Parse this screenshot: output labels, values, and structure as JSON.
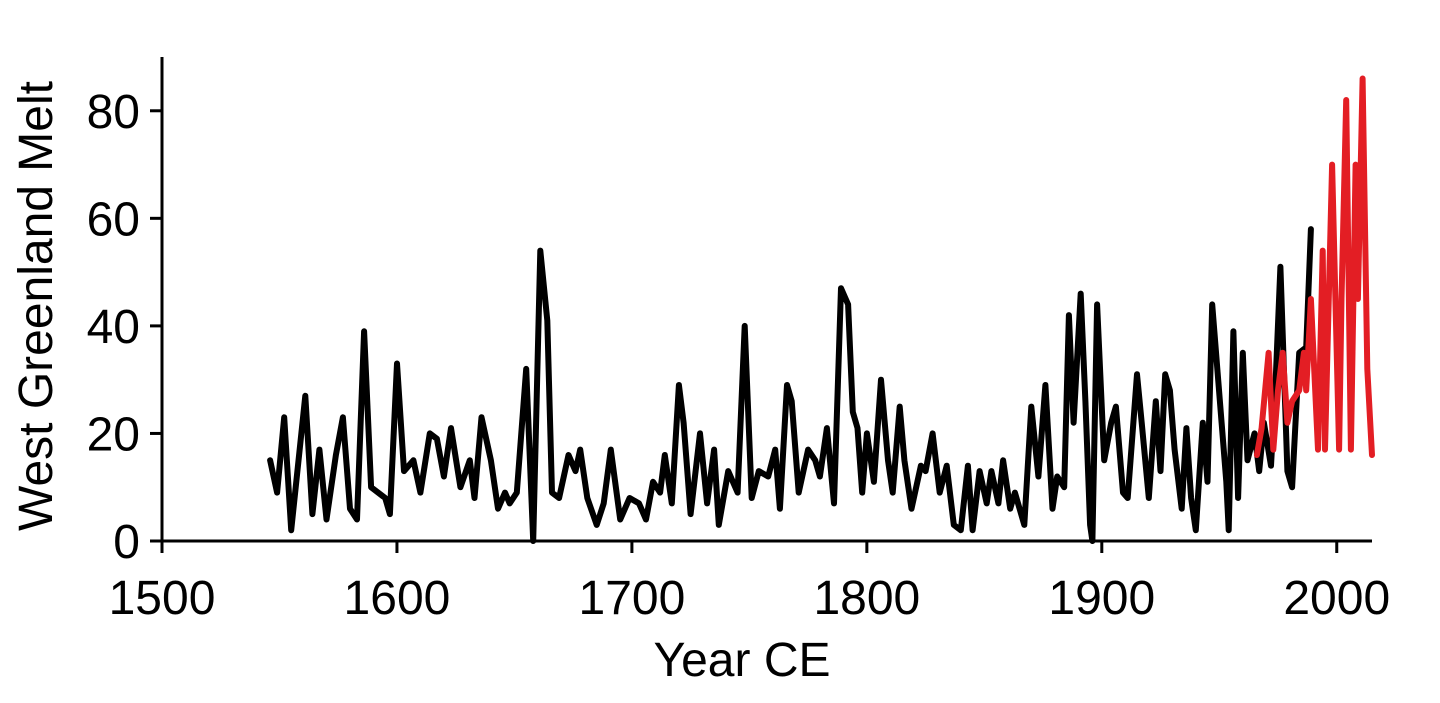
{
  "chart_data": {
    "type": "line",
    "xlabel": "Year CE",
    "ylabel": "West Greenland Melt",
    "xlim": [
      1500,
      2015
    ],
    "ylim": [
      0,
      90
    ],
    "xticks": [
      1500,
      1600,
      1700,
      1800,
      1900,
      2000
    ],
    "yticks": [
      0,
      20,
      40,
      60,
      80
    ],
    "series": [
      {
        "color": "#000000",
        "x": [
          1546,
          1549,
          1552,
          1555,
          1561,
          1564,
          1567,
          1570,
          1574,
          1577,
          1580,
          1583,
          1586,
          1589,
          1595,
          1597,
          1600,
          1603,
          1607,
          1610,
          1614,
          1617,
          1620,
          1623,
          1627,
          1631,
          1633,
          1636,
          1640,
          1643,
          1646,
          1648,
          1651,
          1655,
          1658,
          1661,
          1664,
          1666,
          1669,
          1673,
          1676,
          1678,
          1681,
          1685,
          1688,
          1691,
          1695,
          1699,
          1703,
          1706,
          1709,
          1712,
          1714,
          1717,
          1720,
          1722,
          1725,
          1729,
          1732,
          1735,
          1737,
          1741,
          1745,
          1748,
          1751,
          1754,
          1758,
          1761,
          1763,
          1766,
          1768,
          1771,
          1775,
          1778,
          1780,
          1783,
          1786,
          1789,
          1792,
          1794,
          1796,
          1798,
          1800,
          1803,
          1806,
          1809,
          1811,
          1814,
          1816,
          1819,
          1823,
          1825,
          1828,
          1831,
          1834,
          1837,
          1840,
          1843,
          1845,
          1848,
          1851,
          1853,
          1856,
          1858,
          1861,
          1863,
          1867,
          1870,
          1873,
          1876,
          1879,
          1881,
          1884,
          1886,
          1888,
          1891,
          1893,
          1895,
          1896,
          1898,
          1901,
          1904,
          1906,
          1909,
          1911,
          1915,
          1917,
          1920,
          1923,
          1925,
          1927,
          1929,
          1931,
          1934,
          1936,
          1938,
          1940,
          1943,
          1945,
          1947,
          1951,
          1953,
          1954,
          1956,
          1958,
          1960,
          1962,
          1965,
          1967,
          1969,
          1972,
          1974,
          1976,
          1979,
          1981,
          1984,
          1987,
          1989
        ],
        "values": [
          15,
          9,
          23,
          2,
          27,
          5,
          17,
          4,
          16,
          23,
          6,
          4,
          39,
          10,
          8,
          5,
          33,
          13,
          15,
          9,
          20,
          19,
          12,
          21,
          10,
          15,
          8,
          23,
          15,
          6,
          9,
          7,
          9,
          32,
          0,
          54,
          41,
          9,
          8,
          16,
          13,
          17,
          8,
          3,
          7,
          17,
          4,
          8,
          7,
          4,
          11,
          9,
          16,
          7,
          29,
          22,
          5,
          20,
          7,
          17,
          3,
          13,
          9,
          40,
          8,
          13,
          12,
          17,
          6,
          29,
          26,
          9,
          17,
          15,
          12,
          21,
          7,
          47,
          44,
          24,
          21,
          9,
          20,
          11,
          30,
          15,
          9,
          25,
          15,
          6,
          14,
          13,
          20,
          9,
          14,
          3,
          2,
          14,
          2,
          13,
          7,
          13,
          7,
          15,
          6,
          9,
          3,
          25,
          12,
          29,
          6,
          12,
          10,
          42,
          22,
          46,
          26,
          3,
          0,
          44,
          15,
          22,
          25,
          9,
          8,
          31,
          22,
          8,
          26,
          13,
          31,
          28,
          17,
          6,
          21,
          8,
          2,
          22,
          11,
          44,
          22,
          11,
          2,
          39,
          8,
          35,
          15,
          20,
          13,
          22,
          14,
          30,
          51,
          13,
          10,
          35,
          36,
          58
        ]
      },
      {
        "color": "#e31e24",
        "x": [
          1966,
          1968,
          1971,
          1973,
          1975,
          1977,
          1979,
          1981,
          1984,
          1986,
          1987,
          1989,
          1992,
          1994,
          1995,
          1998,
          2001,
          2002,
          2004,
          2006,
          2008,
          2009,
          2011,
          2013,
          2015
        ],
        "values": [
          16,
          21,
          35,
          17,
          28,
          35,
          22,
          26,
          28,
          35,
          28,
          45,
          17,
          54,
          17,
          70,
          17,
          45,
          82,
          17,
          70,
          45,
          86,
          32,
          16
        ]
      }
    ]
  }
}
